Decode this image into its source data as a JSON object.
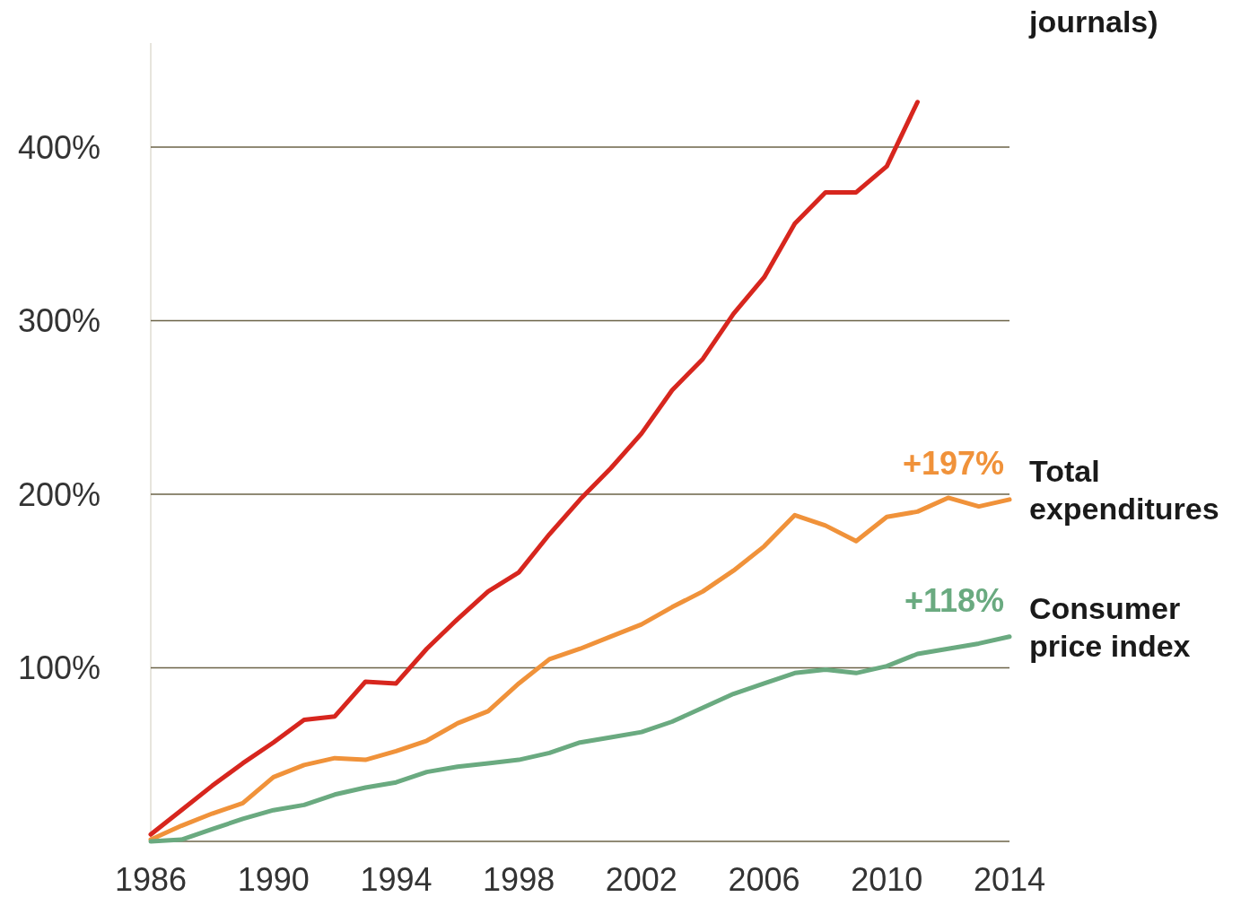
{
  "chart_data": {
    "type": "line",
    "x": [
      1986,
      1987,
      1988,
      1989,
      1990,
      1991,
      1992,
      1993,
      1994,
      1995,
      1996,
      1997,
      1998,
      1999,
      2000,
      2001,
      2002,
      2003,
      2004,
      2005,
      2006,
      2007,
      2008,
      2009,
      2010,
      2011,
      2012,
      2013,
      2014
    ],
    "series": [
      {
        "name": "journals)",
        "color": "#d7261e",
        "values": [
          4,
          18,
          32,
          45,
          57,
          70,
          72,
          92,
          91,
          111,
          128,
          144,
          155,
          177,
          197,
          215,
          235,
          260,
          278,
          304,
          325,
          356,
          374,
          374,
          389,
          426,
          null,
          null,
          null
        ]
      },
      {
        "name": "Total expenditures",
        "color": "#f0923a",
        "values": [
          1,
          9,
          16,
          22,
          37,
          44,
          48,
          47,
          52,
          58,
          68,
          75,
          91,
          105,
          111,
          118,
          125,
          135,
          144,
          156,
          170,
          188,
          182,
          173,
          187,
          190,
          198,
          193,
          197
        ]
      },
      {
        "name": "Consumer price index",
        "color": "#6aaa80",
        "values": [
          0,
          1,
          7,
          13,
          18,
          21,
          27,
          31,
          34,
          40,
          43,
          45,
          47,
          51,
          57,
          60,
          63,
          69,
          77,
          85,
          91,
          97,
          99,
          97,
          101,
          108,
          111,
          114,
          118
        ]
      }
    ],
    "xlim": [
      1986,
      2014
    ],
    "xticks": [
      1986,
      1990,
      1994,
      1998,
      2002,
      2006,
      2010,
      2014
    ],
    "ylim": [
      0,
      460
    ],
    "yticks": [
      {
        "value": 0,
        "label": null
      },
      {
        "value": 100,
        "label": "100%"
      },
      {
        "value": 200,
        "label": "200%"
      },
      {
        "value": 300,
        "label": "300%"
      },
      {
        "value": 400,
        "label": "400%"
      }
    ],
    "grid": "y",
    "legend": false,
    "marker": "none",
    "line_style": "solid",
    "annotations": [
      {
        "text": "+197%",
        "x": 2014,
        "y": 197
      },
      {
        "text": "+118%",
        "x": 2014,
        "y": 118
      }
    ]
  }
}
